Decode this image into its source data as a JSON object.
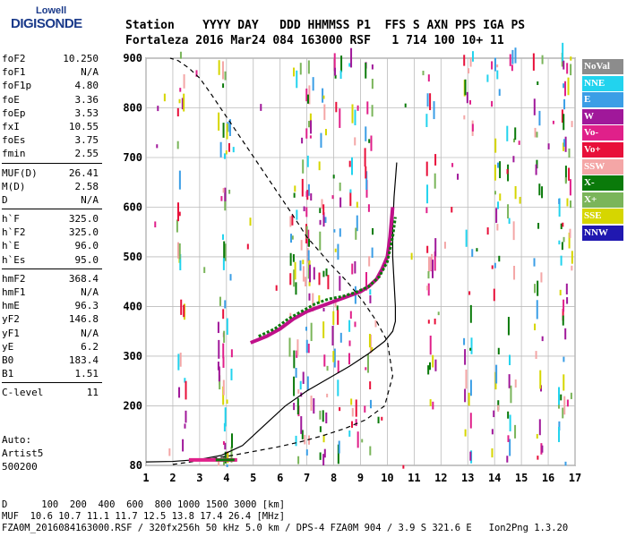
{
  "logo": {
    "line1": "Lowell",
    "line2": "DIGISONDE"
  },
  "header": {
    "row1": "Station    YYYY DAY   DDD HHMMSS P1  FFS S AXN PPS IGA PS",
    "row2": "Fortaleza 2016 Mar24 084 163000 RSF   1 714 100 10+ 11"
  },
  "params_group1": [
    {
      "k": "foF2",
      "v": "10.250"
    },
    {
      "k": "foF1",
      "v": "N/A"
    },
    {
      "k": "foF1p",
      "v": "4.80"
    },
    {
      "k": "foE",
      "v": "3.36"
    },
    {
      "k": "foEp",
      "v": "3.53"
    },
    {
      "k": "fxI",
      "v": "10.55"
    },
    {
      "k": "foEs",
      "v": "3.75"
    },
    {
      "k": "fmin",
      "v": "2.55"
    }
  ],
  "params_group2": [
    {
      "k": "MUF(D)",
      "v": "26.41"
    },
    {
      "k": "M(D)",
      "v": "2.58"
    },
    {
      "k": "D",
      "v": "N/A"
    }
  ],
  "params_group3": [
    {
      "k": "h`F",
      "v": "325.0"
    },
    {
      "k": "h`F2",
      "v": "325.0"
    },
    {
      "k": "h`E",
      "v": "96.0"
    },
    {
      "k": "h`Es",
      "v": "95.0"
    }
  ],
  "params_group4": [
    {
      "k": "hmF2",
      "v": "368.4"
    },
    {
      "k": "hmF1",
      "v": "N/A"
    },
    {
      "k": "hmE",
      "v": "96.3"
    },
    {
      "k": "yF2",
      "v": "146.8"
    },
    {
      "k": "yF1",
      "v": "N/A"
    },
    {
      "k": "yE",
      "v": "6.2"
    },
    {
      "k": "B0",
      "v": "183.4"
    },
    {
      "k": "B1",
      "v": "1.51"
    }
  ],
  "params_group5": [
    {
      "k": "C-level",
      "v": "11"
    }
  ],
  "auto": {
    "l1": "Auto:",
    "l2": "Artist5",
    "l3": "500200"
  },
  "legend": [
    {
      "label": "NoVal",
      "color": "#8c8c8c"
    },
    {
      "label": "NNE",
      "color": "#22d3ee"
    },
    {
      "label": "E",
      "color": "#3b9ee6"
    },
    {
      "label": "W",
      "color": "#a0189a"
    },
    {
      "label": "Vo-",
      "color": "#e0208a"
    },
    {
      "label": "Vo+",
      "color": "#e8103a"
    },
    {
      "label": "SSW",
      "color": "#f4a6a6"
    },
    {
      "label": "X-",
      "color": "#0a7a0a"
    },
    {
      "label": "X+",
      "color": "#7ab55a"
    },
    {
      "label": "SSE",
      "color": "#d6d600"
    },
    {
      "label": "NNW",
      "color": "#2018b0"
    }
  ],
  "footer": {
    "r1": "D      100  200  400  600  800 1000 1500 3000 [km]",
    "r2": "MUF  10.6 10.7 11.1 11.7 12.5 13.8 17.4 26.4 [MHz]",
    "r3": "FZA0M_2016084163000.RSF / 320fx256h 50 kHz 5.0 km / DPS-4 FZA0M 904 / 3.9 S 321.6 E   Ion2Png 1.3.20"
  },
  "chart_data": {
    "type": "scatter",
    "xlim": [
      1,
      17
    ],
    "ylim": [
      80,
      900
    ],
    "xticks": [
      "1",
      "2",
      "3",
      "4",
      "5",
      "6",
      "7",
      "8",
      "9",
      "10",
      "11",
      "12",
      "13",
      "14",
      "15",
      "16",
      "17"
    ],
    "yticks": [
      "80",
      "200",
      "300",
      "400",
      "500",
      "600",
      "700",
      "800",
      "900"
    ],
    "grid": true,
    "series": [
      {
        "type": "dashed-line",
        "x": [
          2.0,
          2.4,
          2.9,
          3.5,
          4.2,
          5.0,
          5.9,
          6.8,
          7.6,
          8.4,
          9.2,
          9.9,
          10.2,
          10.0,
          9.6,
          9.1,
          8.5,
          7.8,
          7.0,
          6.4,
          5.9,
          5.4,
          4.9,
          4.4,
          3.9,
          3.4,
          3.0,
          2.6,
          2.2,
          1.9
        ],
        "y": [
          82,
          85,
          89,
          94,
          100,
          108,
          117,
          128,
          140,
          154,
          172,
          200,
          260,
          330,
          370,
          410,
          450,
          490,
          540,
          590,
          630,
          670,
          710,
          750,
          790,
          830,
          860,
          880,
          895,
          900
        ]
      },
      {
        "type": "solid-line",
        "x": [
          1.0,
          2.0,
          3.0,
          3.8,
          4.6,
          5.4,
          6.2,
          7.0,
          7.8,
          8.6,
          9.3,
          9.9,
          10.2,
          10.3,
          10.3,
          10.25,
          10.2,
          10.2,
          10.25,
          10.35
        ],
        "y": [
          87,
          88,
          92,
          100,
          120,
          160,
          200,
          230,
          255,
          280,
          305,
          330,
          350,
          370,
          400,
          450,
          500,
          560,
          620,
          690
        ]
      },
      {
        "type": "trace-o",
        "x": [
          4.9,
          5.5,
          6.0,
          6.5,
          7.0,
          7.5,
          8.0,
          8.5,
          9.0,
          9.3,
          9.6,
          9.8,
          10.0,
          10.1,
          10.2
        ],
        "y": [
          327,
          340,
          355,
          375,
          390,
          400,
          410,
          420,
          430,
          440,
          455,
          475,
          500,
          540,
          600
        ]
      },
      {
        "type": "trace-x",
        "x": [
          5.2,
          5.8,
          6.3,
          6.8,
          7.3,
          7.8,
          8.3,
          8.8,
          9.3,
          9.7,
          10.0,
          10.2,
          10.3
        ],
        "y": [
          340,
          355,
          375,
          390,
          405,
          415,
          420,
          428,
          440,
          460,
          490,
          540,
          580
        ]
      }
    ]
  }
}
